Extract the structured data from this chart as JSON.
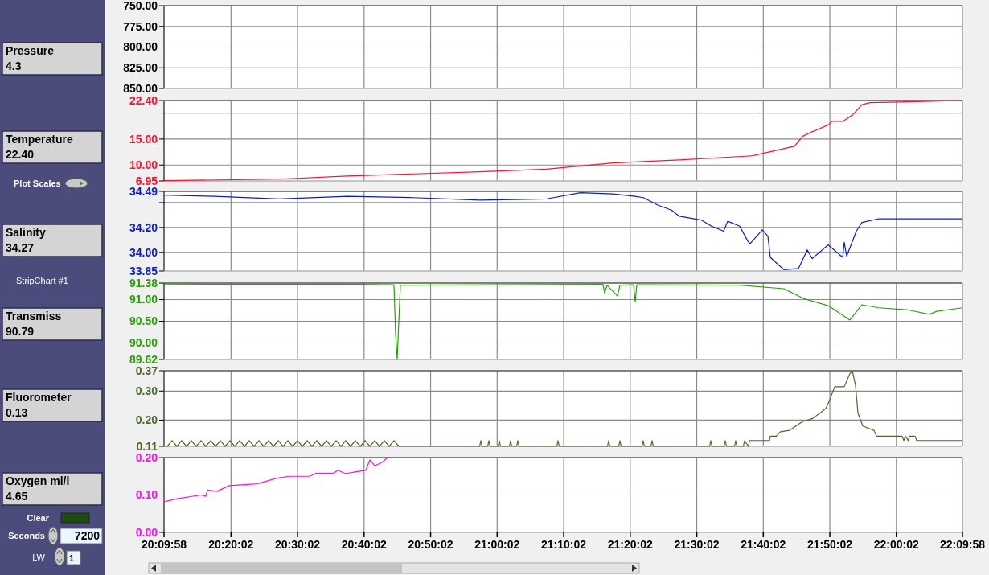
{
  "chart_data": [
    {
      "type": "other",
      "annotations": [
        "Plot Scales",
        "StripChart #1",
        "Clear",
        "Seconds",
        "7200",
        "LW",
        "1"
      ]
    },
    {
      "type": "line",
      "ylabel": "Pressure",
      "annotations": [
        "4.3"
      ],
      "ylim": [
        850,
        750
      ],
      "yticks": [
        {
          "value": 750,
          "label": "750.00"
        },
        {
          "value": 775,
          "label": "775.00"
        },
        {
          "value": 800,
          "label": "800.00"
        },
        {
          "value": 825,
          "label": "825.00"
        },
        {
          "value": 850,
          "label": "850.00"
        }
      ],
      "xlim": [
        20.16611,
        22.16611
      ],
      "xticks": [
        {
          "value": 20.16611,
          "label": null
        },
        {
          "value": 20.33389,
          "label": null
        },
        {
          "value": 20.50056,
          "label": null
        },
        {
          "value": 20.66722,
          "label": null
        },
        {
          "value": 20.83389,
          "label": null
        },
        {
          "value": 21.00056,
          "label": null
        },
        {
          "value": 21.16722,
          "label": null
        },
        {
          "value": 21.33389,
          "label": null
        },
        {
          "value": 21.50056,
          "label": null
        },
        {
          "value": 21.66722,
          "label": null
        },
        {
          "value": 21.83389,
          "label": null
        },
        {
          "value": 22.00056,
          "label": null
        },
        {
          "value": 22.16611,
          "label": null
        }
      ],
      "grid": true,
      "tick_labels": "y"
    },
    {
      "type": "line",
      "ylabel": "Temperature",
      "annotations": [
        "22.40"
      ],
      "series": [
        {
          "color": "#ff1030",
          "x": [
            20.1662,
            20.4541,
            20.6253,
            20.7905,
            20.9576,
            21.1248,
            21.29,
            21.4571,
            21.6223,
            21.6404,
            21.7452,
            21.7653,
            21.7895,
            21.8297,
            21.8398,
            21.866,
            21.8902,
            21.9143,
            21.9345,
            22.0513,
            22.1661
          ],
          "values": [
            7.0,
            7.3,
            7.9,
            8.3,
            8.7,
            9.2,
            10.4,
            11.0,
            11.7,
            11.8,
            13.6,
            15.5,
            16.4,
            17.7,
            18.4,
            18.4,
            19.6,
            21.6,
            22.0,
            22.2,
            22.4
          ]
        }
      ],
      "ylim": [
        6.95,
        22.4
      ],
      "yticks": [
        {
          "value": 6.95,
          "label": "6.95"
        },
        {
          "value": 10,
          "label": "10.00"
        },
        {
          "value": 15,
          "label": "15.00"
        },
        {
          "value": 20,
          "label": null
        },
        {
          "value": 22.4,
          "label": "22.40"
        }
      ],
      "xlim": [
        20.16611,
        22.16611
      ],
      "xticks": [
        {
          "value": 20.16611,
          "label": null
        },
        {
          "value": 20.33389,
          "label": null
        },
        {
          "value": 20.50056,
          "label": null
        },
        {
          "value": 20.66722,
          "label": null
        },
        {
          "value": 20.83389,
          "label": null
        },
        {
          "value": 21.00056,
          "label": null
        },
        {
          "value": 21.16722,
          "label": null
        },
        {
          "value": 21.33389,
          "label": null
        },
        {
          "value": 21.50056,
          "label": null
        },
        {
          "value": 21.66722,
          "label": null
        },
        {
          "value": 21.83389,
          "label": null
        },
        {
          "value": 22.00056,
          "label": null
        },
        {
          "value": 22.16611,
          "label": null
        }
      ],
      "grid": true,
      "tick_labels": "y"
    },
    {
      "type": "line",
      "ylabel": "Salinity",
      "annotations": [
        "34.27"
      ],
      "series": [
        {
          "color": "#0a1ec8",
          "x": [
            20.1662,
            20.293,
            20.4541,
            20.6253,
            20.7905,
            20.9576,
            21.1248,
            21.2094,
            21.29,
            21.3464,
            21.3665,
            21.4028,
            21.437,
            21.4571,
            21.5115,
            21.5377,
            21.5679,
            21.578,
            21.6082,
            21.6283,
            21.6344,
            21.6646,
            21.6787,
            21.6847,
            21.719,
            21.7552,
            21.7774,
            21.7895,
            21.8297,
            21.866,
            21.87,
            21.8761,
            21.9002,
            21.9143,
            21.9566,
            22.1661
          ],
          "values": [
            34.46,
            34.45,
            34.43,
            34.45,
            34.44,
            34.42,
            34.43,
            34.48,
            34.47,
            34.45,
            34.44,
            34.38,
            34.34,
            34.29,
            34.26,
            34.21,
            34.17,
            34.25,
            34.21,
            34.09,
            34.07,
            34.18,
            34.13,
            33.96,
            33.86,
            33.87,
            34.02,
            33.95,
            34.06,
            33.96,
            34.08,
            33.97,
            34.17,
            34.24,
            34.27,
            34.27
          ]
        }
      ],
      "ylim": [
        33.85,
        34.49
      ],
      "yticks": [
        {
          "value": 33.85,
          "label": "33.85"
        },
        {
          "value": 34,
          "label": "34.00"
        },
        {
          "value": 34.2,
          "label": "34.20"
        },
        {
          "value": 34.4,
          "label": null
        },
        {
          "value": 34.49,
          "label": "34.49"
        }
      ],
      "xlim": [
        20.16611,
        22.16611
      ],
      "xticks": [
        {
          "value": 20.16611,
          "label": null
        },
        {
          "value": 20.33389,
          "label": null
        },
        {
          "value": 20.50056,
          "label": null
        },
        {
          "value": 20.66722,
          "label": null
        },
        {
          "value": 20.83389,
          "label": null
        },
        {
          "value": 21.00056,
          "label": null
        },
        {
          "value": 21.16722,
          "label": null
        },
        {
          "value": 21.33389,
          "label": null
        },
        {
          "value": 21.50056,
          "label": null
        },
        {
          "value": 21.66722,
          "label": null
        },
        {
          "value": 21.83389,
          "label": null
        },
        {
          "value": 22.00056,
          "label": null
        },
        {
          "value": 22.16611,
          "label": null
        }
      ],
      "grid": true,
      "tick_labels": "y"
    },
    {
      "type": "line",
      "ylabel": "Transmiss",
      "annotations": [
        "90.79"
      ],
      "series": [
        {
          "color": "#2aa00a",
          "x": [
            20.1662,
            20.3,
            20.65,
            20.7421,
            20.7461,
            20.7502,
            20.7542,
            20.7582,
            21.0,
            21.2658,
            21.2698,
            21.2759,
            21.3021,
            21.3081,
            21.3423,
            21.3464,
            21.3504,
            21.6082,
            21.719,
            21.7693,
            21.8297,
            21.8841,
            21.9143,
            21.9566,
            22.0312,
            22.0835,
            22.1017,
            22.1661
          ],
          "values": [
            91.36,
            91.35,
            91.35,
            91.34,
            90.23,
            89.62,
            90.49,
            91.33,
            91.34,
            91.35,
            91.15,
            91.33,
            91.08,
            91.33,
            91.34,
            90.95,
            91.34,
            91.33,
            91.25,
            91.02,
            90.86,
            90.53,
            90.88,
            90.81,
            90.76,
            90.66,
            90.73,
            90.81
          ]
        }
      ],
      "ylim": [
        89.62,
        91.38
      ],
      "yticks": [
        {
          "value": 89.62,
          "label": "89.62"
        },
        {
          "value": 90,
          "label": "90.00"
        },
        {
          "value": 90.5,
          "label": "90.50"
        },
        {
          "value": 91,
          "label": "91.00"
        },
        {
          "value": 91.38,
          "label": "91.38"
        }
      ],
      "xlim": [
        20.16611,
        22.16611
      ],
      "xticks": [
        {
          "value": 20.16611,
          "label": null
        },
        {
          "value": 20.33389,
          "label": null
        },
        {
          "value": 20.50056,
          "label": null
        },
        {
          "value": 20.66722,
          "label": null
        },
        {
          "value": 20.83389,
          "label": null
        },
        {
          "value": 21.00056,
          "label": null
        },
        {
          "value": 21.16722,
          "label": null
        },
        {
          "value": 21.33389,
          "label": null
        },
        {
          "value": 21.50056,
          "label": null
        },
        {
          "value": 21.66722,
          "label": null
        },
        {
          "value": 21.83389,
          "label": null
        },
        {
          "value": 22.00056,
          "label": null
        },
        {
          "value": 22.16611,
          "label": null
        }
      ],
      "grid": true,
      "tick_labels": "y"
    },
    {
      "type": "line",
      "ylabel": "Fluorometer",
      "annotations": [
        "0.13"
      ],
      "series": [
        {
          "color": "#4a6a2a",
          "x": [
            20.1662,
            20.1742,
            20.1863,
            20.1984,
            20.2105,
            20.2225,
            20.2346,
            20.2467,
            20.2588,
            20.2709,
            20.283,
            20.2951,
            20.3071,
            20.3192,
            20.3313,
            20.3434,
            20.3555,
            20.3676,
            20.3796,
            20.3917,
            20.4038,
            20.4159,
            20.428,
            20.4401,
            20.4522,
            20.4642,
            20.4763,
            20.4884,
            20.5005,
            20.5126,
            20.5247,
            20.5368,
            20.5488,
            20.5609,
            20.573,
            20.5851,
            20.5972,
            20.6093,
            20.6213,
            20.6334,
            20.6455,
            20.6576,
            20.6697,
            20.6818,
            20.6939,
            20.7059,
            20.718,
            20.7301,
            20.7422,
            20.7543,
            20.9567,
            20.9597,
            20.9627,
            20.9768,
            20.9798,
            20.9828,
            21.003,
            21.006,
            21.009,
            21.0312,
            21.0342,
            21.0372,
            21.0493,
            21.0523,
            21.0553,
            21.15,
            21.153,
            21.156,
            21.2769,
            21.2799,
            21.2829,
            21.3051,
            21.3081,
            21.3111,
            21.3635,
            21.3665,
            21.3695,
            21.3857,
            21.3887,
            21.3917,
            21.5327,
            21.5357,
            21.5387,
            21.5689,
            21.5719,
            21.5749,
            21.5951,
            21.5981,
            21.6011,
            21.6173,
            21.6203,
            21.63,
            21.6324,
            21.6827,
            21.6847,
            21.7,
            21.71,
            21.7331,
            21.7653,
            21.7895,
            21.8096,
            21.8237,
            21.8338,
            21.8459,
            21.87,
            21.8841,
            21.8902,
            21.8982,
            21.9043,
            21.9164,
            21.9446,
            21.9506,
            22.015,
            22.0191,
            22.0231,
            22.03,
            22.034,
            22.0473,
            22.0513,
            22.1661
          ],
          "values": [
            0.11,
            0.11,
            0.13,
            0.11,
            0.13,
            0.11,
            0.13,
            0.11,
            0.13,
            0.11,
            0.13,
            0.11,
            0.13,
            0.11,
            0.13,
            0.11,
            0.13,
            0.11,
            0.13,
            0.11,
            0.13,
            0.11,
            0.13,
            0.11,
            0.13,
            0.11,
            0.13,
            0.11,
            0.13,
            0.11,
            0.13,
            0.11,
            0.13,
            0.11,
            0.13,
            0.11,
            0.13,
            0.11,
            0.13,
            0.11,
            0.13,
            0.11,
            0.13,
            0.11,
            0.13,
            0.11,
            0.13,
            0.11,
            0.13,
            0.11,
            0.11,
            0.13,
            0.11,
            0.11,
            0.13,
            0.11,
            0.11,
            0.13,
            0.11,
            0.11,
            0.13,
            0.11,
            0.11,
            0.13,
            0.11,
            0.11,
            0.13,
            0.11,
            0.11,
            0.13,
            0.11,
            0.11,
            0.13,
            0.11,
            0.11,
            0.13,
            0.11,
            0.11,
            0.13,
            0.11,
            0.11,
            0.13,
            0.11,
            0.11,
            0.13,
            0.11,
            0.11,
            0.13,
            0.11,
            0.11,
            0.13,
            0.11,
            0.13,
            0.13,
            0.145,
            0.145,
            0.16,
            0.165,
            0.195,
            0.205,
            0.225,
            0.24,
            0.27,
            0.315,
            0.315,
            0.36,
            0.37,
            0.32,
            0.225,
            0.18,
            0.165,
            0.145,
            0.145,
            0.13,
            0.145,
            0.13,
            0.145,
            0.145,
            0.13,
            0.13
          ]
        }
      ],
      "ylim": [
        0.11,
        0.37
      ],
      "yticks": [
        {
          "value": 0.11,
          "label": "0.11"
        },
        {
          "value": 0.2,
          "label": "0.20"
        },
        {
          "value": 0.3,
          "label": "0.30"
        },
        {
          "value": 0.37,
          "label": "0.37"
        }
      ],
      "xlim": [
        20.16611,
        22.16611
      ],
      "xticks": [
        {
          "value": 20.16611,
          "label": null
        },
        {
          "value": 20.33389,
          "label": null
        },
        {
          "value": 20.50056,
          "label": null
        },
        {
          "value": 20.66722,
          "label": null
        },
        {
          "value": 20.83389,
          "label": null
        },
        {
          "value": 21.00056,
          "label": null
        },
        {
          "value": 21.16722,
          "label": null
        },
        {
          "value": 21.33389,
          "label": null
        },
        {
          "value": 21.50056,
          "label": null
        },
        {
          "value": 21.66722,
          "label": null
        },
        {
          "value": 21.83389,
          "label": null
        },
        {
          "value": 22.00056,
          "label": null
        },
        {
          "value": 22.16611,
          "label": null
        }
      ],
      "grid": true,
      "tick_labels": "y"
    },
    {
      "type": "line",
      "ylabel": "Oxygen ml/l",
      "annotations": [
        "4.65"
      ],
      "series": [
        {
          "color": "#ff10ee",
          "x": [
            20.1662,
            20.1983,
            20.2587,
            20.2708,
            20.2749,
            20.299,
            20.3292,
            20.3997,
            20.4481,
            20.4803,
            20.5307,
            20.5468,
            20.5911,
            20.6011,
            20.6213,
            20.6414,
            20.6716,
            20.6817,
            20.6938,
            20.7119,
            20.726
          ],
          "values": [
            0.082,
            0.09,
            0.1,
            0.097,
            0.113,
            0.11,
            0.125,
            0.13,
            0.145,
            0.15,
            0.15,
            0.158,
            0.158,
            0.166,
            0.157,
            0.161,
            0.166,
            0.194,
            0.178,
            0.187,
            0.2
          ]
        }
      ],
      "ylim": [
        0,
        0.2
      ],
      "yticks": [
        {
          "value": 0,
          "label": "0.00"
        },
        {
          "value": 0.1,
          "label": "0.10"
        },
        {
          "value": 0.2,
          "label": "0.20"
        }
      ],
      "xlim": [
        20.16611,
        22.16611
      ],
      "xticks": [
        {
          "value": 20.16611,
          "label": "20:09:58"
        },
        {
          "value": 20.33389,
          "label": "20:20:02"
        },
        {
          "value": 20.50056,
          "label": "20:30:02"
        },
        {
          "value": 20.66722,
          "label": "20:40:02"
        },
        {
          "value": 20.83389,
          "label": "20:50:02"
        },
        {
          "value": 21.00056,
          "label": "21:00:02"
        },
        {
          "value": 21.16722,
          "label": "21:10:02"
        },
        {
          "value": 21.33389,
          "label": "21:20:02"
        },
        {
          "value": 21.50056,
          "label": "21:30:02"
        },
        {
          "value": 21.66722,
          "label": "21:40:02"
        },
        {
          "value": 21.83389,
          "label": "21:50:02"
        },
        {
          "value": 22.00056,
          "label": "22:00:02"
        },
        {
          "value": 22.16611,
          "label": "22:09:58"
        }
      ],
      "grid": true
    }
  ]
}
